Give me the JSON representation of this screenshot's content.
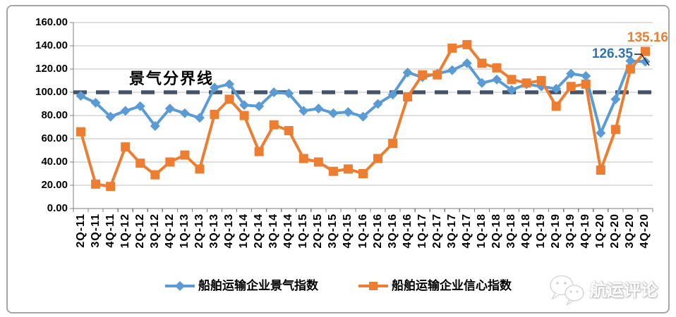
{
  "chart_data": {
    "type": "line",
    "title": "",
    "categories": [
      "2Q-11",
      "3Q-11",
      "4Q-11",
      "1Q-12",
      "2Q-12",
      "3Q-12",
      "4Q-12",
      "1Q-13",
      "2Q-13",
      "3Q-13",
      "4Q-13",
      "1Q-14",
      "2Q-14",
      "3Q-14",
      "4Q-14",
      "1Q-15",
      "2Q-15",
      "3Q-15",
      "4Q-15",
      "1Q-16",
      "2Q-16",
      "3Q-16",
      "4Q-16",
      "1Q-17",
      "2Q-17",
      "3Q-17",
      "4Q-17",
      "1Q-18",
      "2Q-18",
      "3Q-18",
      "4Q-18",
      "1Q-19",
      "2Q-19",
      "3Q-19",
      "4Q-19",
      "1Q-20",
      "2Q-20",
      "3Q-20",
      "4Q-20"
    ],
    "series": [
      {
        "name": "船舶运输企业景气指数",
        "marker": "diamond",
        "color": "#5B9BD5",
        "values": [
          97,
          91,
          79,
          84,
          88,
          71,
          86,
          82,
          78,
          104,
          107,
          89,
          88,
          100,
          99,
          84,
          86,
          82,
          83,
          79,
          90,
          98,
          117,
          113,
          116,
          119,
          125,
          108,
          111,
          102,
          107,
          105,
          103,
          116,
          114,
          65,
          94,
          127,
          126.35
        ]
      },
      {
        "name": "船舶运输企业信心指数",
        "marker": "square",
        "color": "#ED7D31",
        "values": [
          66,
          21,
          19,
          53,
          39,
          29,
          40,
          46,
          34,
          81,
          94,
          80,
          49,
          72,
          67,
          43,
          40,
          32,
          34,
          30,
          43,
          56,
          96,
          115,
          115,
          138,
          141,
          125,
          121,
          111,
          108,
          110,
          88,
          105,
          107,
          33,
          68,
          120,
          135.16
        ]
      }
    ],
    "ylim": [
      0,
      160
    ],
    "ytick_step": 20,
    "ytick_labels": [
      "0.00",
      "20.00",
      "40.00",
      "60.00",
      "80.00",
      "100.00",
      "120.00",
      "140.00",
      "160.00"
    ],
    "grid": "horizontal",
    "legend_position": "bottom",
    "reference_line": {
      "value": 100,
      "label": "景气分界线",
      "style": "dashed",
      "color": "#44546A"
    },
    "annotations": [
      {
        "series": "船舶运输企业信心指数",
        "category": "4Q-20",
        "text": "135.16",
        "color": "#ED7D31"
      },
      {
        "series": "船舶运输企业景气指数",
        "category": "4Q-20",
        "text": "126.35",
        "color": "#2E75B6"
      }
    ]
  },
  "watermark": {
    "text": "航运评论",
    "icon": "chat-bubbles-icon"
  },
  "colors": {
    "gridline": "#BFBFBF",
    "axis": "#7F7F7F",
    "background": "#FFFFFF",
    "frame_border": "#A6A6A6"
  }
}
